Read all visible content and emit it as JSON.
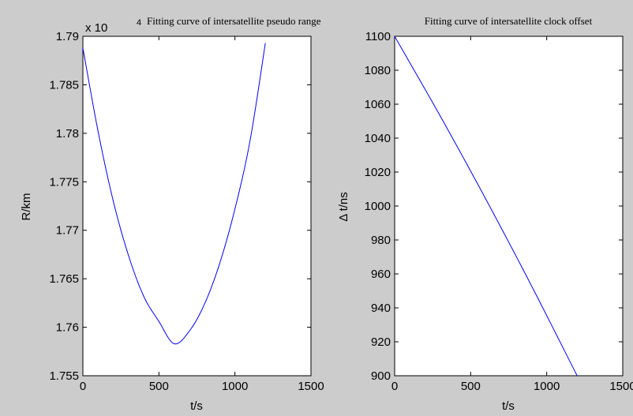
{
  "chart_data": [
    {
      "type": "line",
      "title": "Fitting curve of intersatellite pseudo range",
      "exponent_base": "x 10",
      "exponent_power": "4",
      "xlabel": "t/s",
      "ylabel": "R/km",
      "xlim": [
        0,
        1500
      ],
      "ylim": [
        1.755,
        1.79
      ],
      "xticks": [
        "0",
        "500",
        "1000",
        "1500"
      ],
      "yticks": [
        "1.755",
        "1.76",
        "1.765",
        "1.77",
        "1.775",
        "1.78",
        "1.785",
        "1.79"
      ],
      "series": [
        {
          "color": "#0000ff",
          "x": [
            0,
            100,
            200,
            300,
            400,
            500,
            600,
            700,
            800,
            900,
            1000,
            1100,
            1200
          ],
          "y": [
            1.7888,
            1.7802,
            1.773,
            1.7674,
            1.7632,
            1.7606,
            1.7583,
            1.7596,
            1.7624,
            1.7666,
            1.7722,
            1.7793,
            1.7893
          ]
        }
      ]
    },
    {
      "type": "line",
      "title": "Fitting curve of intersatellite clock offset",
      "xlabel": "t/s",
      "ylabel": "Δ t/ns",
      "xlim": [
        0,
        1500
      ],
      "ylim": [
        900,
        1100
      ],
      "xticks": [
        "0",
        "500",
        "1000",
        "1500"
      ],
      "yticks": [
        "900",
        "920",
        "940",
        "960",
        "980",
        "1000",
        "1020",
        "1040",
        "1060",
        "1080",
        "1100"
      ],
      "series": [
        {
          "color": "#0000ff",
          "x": [
            0,
            300,
            600,
            900,
            1200
          ],
          "y": [
            1100,
            1053,
            1004,
            953,
            900
          ]
        }
      ]
    }
  ]
}
